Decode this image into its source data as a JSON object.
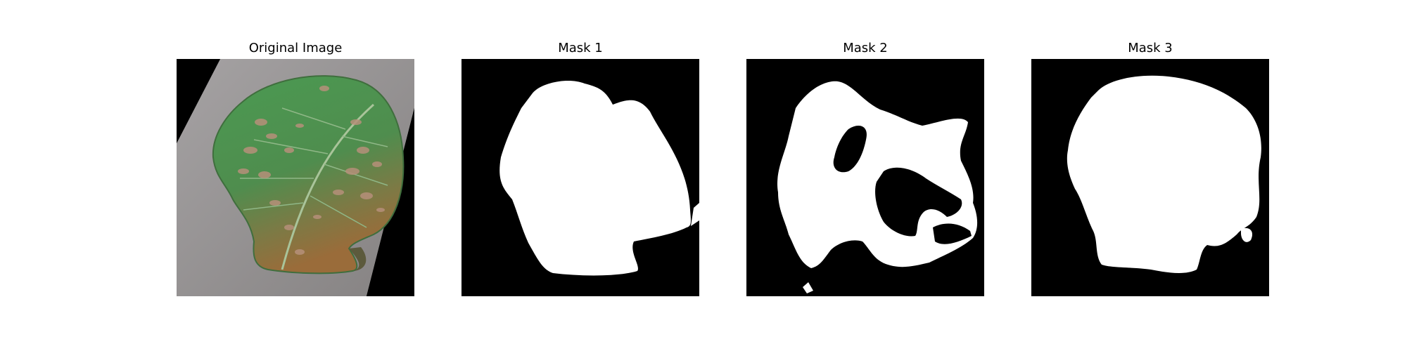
{
  "panels": [
    {
      "title": "Original Image"
    },
    {
      "title": "Mask 1"
    },
    {
      "title": "Mask 2"
    },
    {
      "title": "Mask 3"
    }
  ],
  "colors": {
    "page_background": "#ffffff",
    "mask_background": "#000000",
    "mask_foreground": "#ffffff",
    "surface_gray": "#8f8c8c",
    "leaf_green": "#4f8f4f",
    "leaf_brown": "#8a6a3c",
    "lesion": "#b08a6e"
  }
}
